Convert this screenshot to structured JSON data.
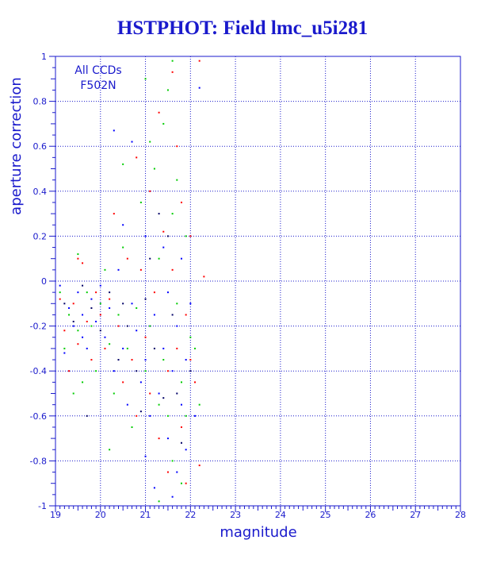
{
  "title": "HSTPHOT: Field lmc_u5i281",
  "chart_data": {
    "type": "scatter",
    "title": "HSTPHOT: Field lmc_u5i281",
    "xlabel": "magnitude",
    "ylabel": "aperture correction",
    "xlim": [
      19,
      28
    ],
    "ylim": [
      -1,
      1
    ],
    "x_ticks": [
      "19",
      "20",
      "21",
      "22",
      "23",
      "24",
      "25",
      "26",
      "27",
      "28"
    ],
    "y_ticks": [
      "-1",
      "-0.8",
      "-0.6",
      "-0.4",
      "-0.2",
      "0",
      "0.2",
      "0.4",
      "0.6",
      "0.8",
      "1"
    ],
    "grid": true,
    "legend_position": "top-left",
    "annotation": [
      "All CCDs",
      "F502N"
    ],
    "colors": {
      "axis": "#1a1acc",
      "title": "#1a1acc",
      "grid": "#1a1acc",
      "series_1": "#0000ff",
      "series_2": "#ff0000",
      "series_3": "#00cc00",
      "series_4": "#000066"
    },
    "series": [
      {
        "color": "#0000ff",
        "points": [
          [
            19.1,
            -0.02
          ],
          [
            19.3,
            -0.12
          ],
          [
            19.4,
            -0.2
          ],
          [
            19.5,
            -0.05
          ],
          [
            19.6,
            -0.15
          ],
          [
            19.7,
            -0.3
          ],
          [
            19.8,
            -0.08
          ],
          [
            19.9,
            -0.18
          ],
          [
            20.0,
            -0.02
          ],
          [
            20.1,
            -0.25
          ],
          [
            20.2,
            -0.12
          ],
          [
            20.3,
            -0.4
          ],
          [
            20.4,
            0.05
          ],
          [
            20.5,
            -0.3
          ],
          [
            20.6,
            -0.55
          ],
          [
            20.7,
            -0.1
          ],
          [
            20.8,
            -0.22
          ],
          [
            20.9,
            -0.45
          ],
          [
            21.0,
            -0.35
          ],
          [
            21.0,
            0.2
          ],
          [
            21.1,
            -0.6
          ],
          [
            21.2,
            -0.15
          ],
          [
            21.3,
            -0.5
          ],
          [
            21.4,
            -0.3
          ],
          [
            21.4,
            0.15
          ],
          [
            21.5,
            -0.7
          ],
          [
            21.5,
            -0.05
          ],
          [
            21.6,
            -0.4
          ],
          [
            21.7,
            -0.85
          ],
          [
            21.7,
            -0.2
          ],
          [
            21.8,
            -0.55
          ],
          [
            21.8,
            0.1
          ],
          [
            21.9,
            -0.35
          ],
          [
            21.9,
            -0.75
          ],
          [
            22.0,
            -0.1
          ],
          [
            22.1,
            -0.6
          ],
          [
            22.2,
            0.86
          ],
          [
            20.3,
            0.67
          ],
          [
            20.7,
            0.62
          ],
          [
            21.2,
            -0.92
          ],
          [
            21.6,
            -0.96
          ],
          [
            21.0,
            -0.78
          ],
          [
            19.2,
            -0.32
          ],
          [
            19.6,
            -0.25
          ],
          [
            20.5,
            0.25
          ]
        ]
      },
      {
        "color": "#ff0000",
        "points": [
          [
            19.1,
            -0.08
          ],
          [
            19.2,
            -0.22
          ],
          [
            19.4,
            -0.1
          ],
          [
            19.5,
            -0.28
          ],
          [
            19.6,
            0.08
          ],
          [
            19.7,
            -0.18
          ],
          [
            19.8,
            -0.35
          ],
          [
            19.9,
            -0.05
          ],
          [
            20.0,
            -0.15
          ],
          [
            20.1,
            -0.3
          ],
          [
            20.2,
            -0.08
          ],
          [
            20.3,
            0.3
          ],
          [
            20.4,
            -0.2
          ],
          [
            20.5,
            -0.45
          ],
          [
            20.6,
            0.1
          ],
          [
            20.7,
            -0.35
          ],
          [
            20.8,
            -0.6
          ],
          [
            20.9,
            0.05
          ],
          [
            21.0,
            -0.25
          ],
          [
            21.1,
            0.4
          ],
          [
            21.1,
            -0.5
          ],
          [
            21.2,
            -0.05
          ],
          [
            21.3,
            -0.7
          ],
          [
            21.4,
            0.22
          ],
          [
            21.5,
            -0.4
          ],
          [
            21.5,
            -0.85
          ],
          [
            21.6,
            0.05
          ],
          [
            21.7,
            -0.3
          ],
          [
            21.7,
            0.6
          ],
          [
            21.8,
            -0.65
          ],
          [
            21.8,
            0.35
          ],
          [
            21.9,
            -0.15
          ],
          [
            21.9,
            -0.9
          ],
          [
            22.0,
            0.2
          ],
          [
            22.1,
            -0.45
          ],
          [
            22.2,
            -0.82
          ],
          [
            22.2,
            0.98
          ],
          [
            21.3,
            0.75
          ],
          [
            22.0,
            -0.35
          ],
          [
            20.8,
            0.55
          ],
          [
            21.6,
            0.93
          ],
          [
            19.5,
            0.1
          ],
          [
            22.3,
            0.02
          ],
          [
            19.3,
            -0.4
          ]
        ]
      },
      {
        "color": "#00cc00",
        "points": [
          [
            19.1,
            -0.05
          ],
          [
            19.2,
            -0.3
          ],
          [
            19.3,
            -0.15
          ],
          [
            19.5,
            -0.22
          ],
          [
            19.5,
            0.12
          ],
          [
            19.6,
            -0.45
          ],
          [
            19.7,
            -0.05
          ],
          [
            19.8,
            -0.2
          ],
          [
            19.9,
            -0.4
          ],
          [
            20.0,
            -0.1
          ],
          [
            20.1,
            0.05
          ],
          [
            20.2,
            -0.28
          ],
          [
            20.3,
            -0.5
          ],
          [
            20.4,
            -0.15
          ],
          [
            20.5,
            0.15
          ],
          [
            20.6,
            -0.3
          ],
          [
            20.7,
            -0.65
          ],
          [
            20.8,
            -0.12
          ],
          [
            20.9,
            0.35
          ],
          [
            21.0,
            -0.4
          ],
          [
            21.0,
            0.9
          ],
          [
            21.1,
            -0.2
          ],
          [
            21.2,
            0.5
          ],
          [
            21.3,
            -0.55
          ],
          [
            21.3,
            0.1
          ],
          [
            21.4,
            0.7
          ],
          [
            21.4,
            -0.35
          ],
          [
            21.5,
            0.85
          ],
          [
            21.5,
            -0.6
          ],
          [
            21.6,
            0.3
          ],
          [
            21.6,
            -0.8
          ],
          [
            21.7,
            0.45
          ],
          [
            21.7,
            -0.1
          ],
          [
            21.8,
            -0.45
          ],
          [
            21.8,
            -0.9
          ],
          [
            21.9,
            0.2
          ],
          [
            21.9,
            -0.6
          ],
          [
            22.0,
            -0.25
          ],
          [
            22.2,
            -0.55
          ],
          [
            21.6,
            0.98
          ],
          [
            21.3,
            -0.98
          ],
          [
            20.5,
            0.52
          ],
          [
            19.4,
            -0.5
          ],
          [
            21.1,
            0.62
          ],
          [
            22.1,
            -0.3
          ],
          [
            20.2,
            -0.75
          ]
        ]
      },
      {
        "color": "#000066",
        "points": [
          [
            19.2,
            -0.1
          ],
          [
            19.4,
            -0.18
          ],
          [
            19.6,
            -0.02
          ],
          [
            19.8,
            -0.12
          ],
          [
            20.0,
            -0.22
          ],
          [
            20.2,
            -0.05
          ],
          [
            20.4,
            -0.35
          ],
          [
            20.6,
            -0.2
          ],
          [
            20.8,
            -0.4
          ],
          [
            21.0,
            -0.08
          ],
          [
            21.2,
            -0.3
          ],
          [
            21.4,
            -0.52
          ],
          [
            21.6,
            -0.15
          ],
          [
            21.8,
            -0.72
          ],
          [
            22.0,
            -0.4
          ],
          [
            21.5,
            0.2
          ],
          [
            20.9,
            -0.58
          ],
          [
            21.3,
            0.3
          ],
          [
            21.7,
            -0.5
          ],
          [
            19.7,
            -0.6
          ],
          [
            20.5,
            -0.1
          ],
          [
            21.1,
            0.1
          ]
        ]
      }
    ]
  }
}
